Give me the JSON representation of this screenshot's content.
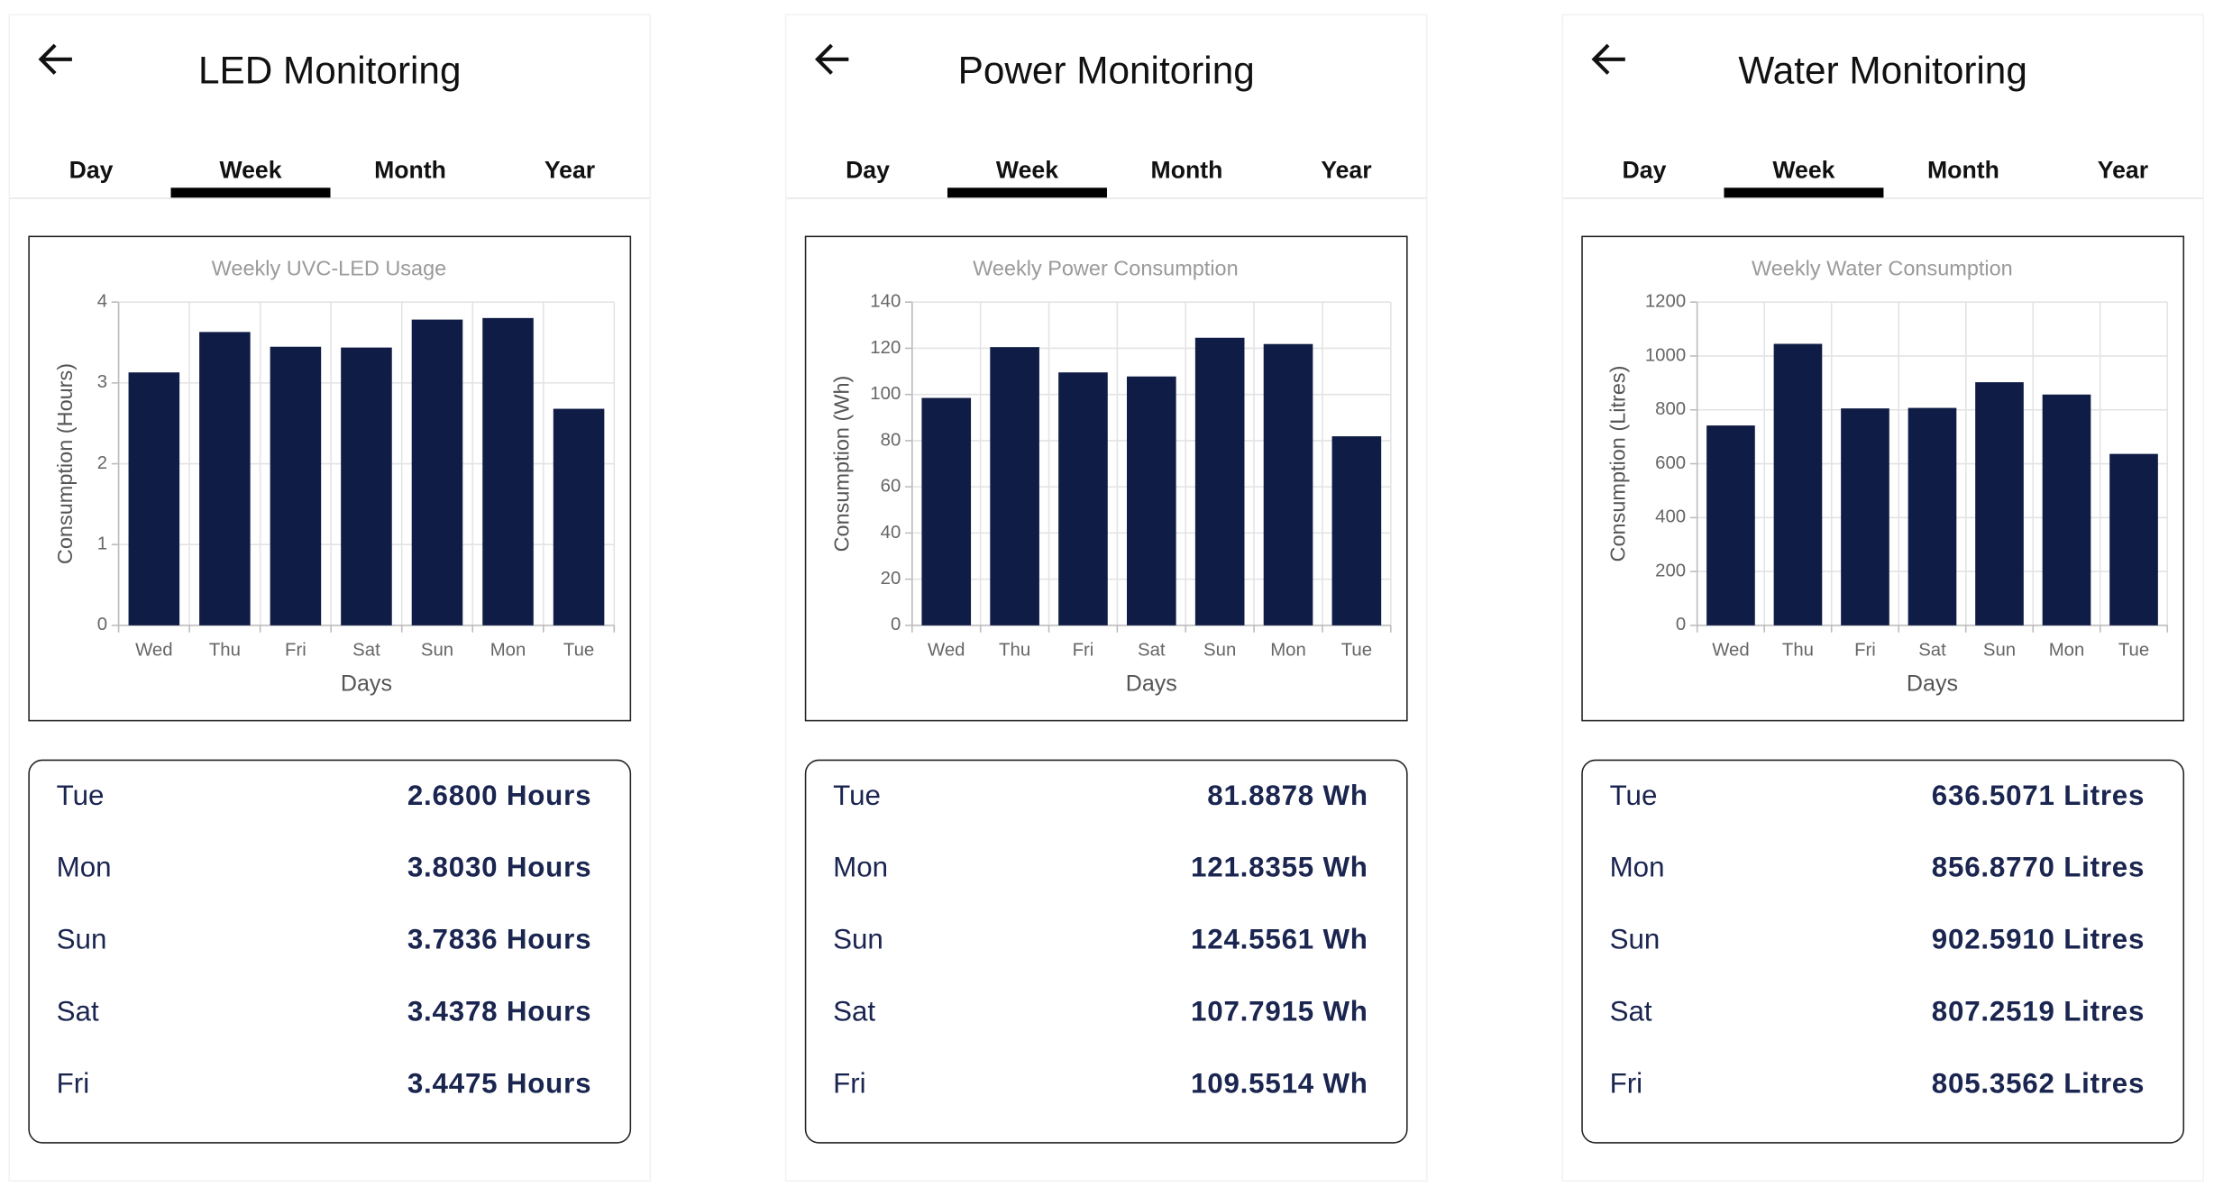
{
  "screens": [
    {
      "title": "LED Monitoring",
      "tabs": [
        "Day",
        "Week",
        "Month",
        "Year"
      ],
      "rows": [
        {
          "day": "Tue",
          "value": "2.6800 Hours"
        },
        {
          "day": "Mon",
          "value": "3.8030 Hours"
        },
        {
          "day": "Sun",
          "value": "3.7836 Hours"
        },
        {
          "day": "Sat",
          "value": "3.4378 Hours"
        },
        {
          "day": "Fri",
          "value": "3.4475 Hours"
        }
      ]
    },
    {
      "title": "Power Monitoring",
      "tabs": [
        "Day",
        "Week",
        "Month",
        "Year"
      ],
      "rows": [
        {
          "day": "Tue",
          "value": "81.8878 Wh"
        },
        {
          "day": "Mon",
          "value": "121.8355 Wh"
        },
        {
          "day": "Sun",
          "value": "124.5561 Wh"
        },
        {
          "day": "Sat",
          "value": "107.7915 Wh"
        },
        {
          "day": "Fri",
          "value": "109.5514 Wh"
        }
      ]
    },
    {
      "title": "Water Monitoring",
      "tabs": [
        "Day",
        "Week",
        "Month",
        "Year"
      ],
      "rows": [
        {
          "day": "Tue",
          "value": "636.5071 Litres"
        },
        {
          "day": "Mon",
          "value": "856.8770 Litres"
        },
        {
          "day": "Sun",
          "value": "902.5910 Litres"
        },
        {
          "day": "Sat",
          "value": "807.2519 Litres"
        },
        {
          "day": "Fri",
          "value": "805.3562 Litres"
        }
      ]
    }
  ],
  "chart_data": [
    {
      "type": "bar",
      "title": "Weekly UVC-LED Usage",
      "x_label": "Days",
      "y_label": "Consumption (Hours)",
      "categories": [
        "Wed",
        "Thu",
        "Fri",
        "Sat",
        "Sun",
        "Mon",
        "Tue"
      ],
      "values": [
        3.13,
        3.63,
        3.4475,
        3.4378,
        3.7836,
        3.803,
        2.68
      ],
      "color": "#0f1c45",
      "ylim": [
        0,
        4
      ],
      "yticks": [
        0,
        1,
        2,
        3,
        4
      ],
      "grid": true
    },
    {
      "type": "bar",
      "title": "Weekly Power Consumption",
      "x_label": "Days",
      "y_label": "Consumption (Wh)",
      "categories": [
        "Wed",
        "Thu",
        "Fri",
        "Sat",
        "Sun",
        "Mon",
        "Tue"
      ],
      "values": [
        98.5,
        120.5,
        109.5514,
        107.7915,
        124.5561,
        121.8355,
        81.8878
      ],
      "color": "#0f1c45",
      "ylim": [
        0,
        140
      ],
      "yticks": [
        0,
        20,
        40,
        60,
        80,
        100,
        120,
        140
      ],
      "grid": true
    },
    {
      "type": "bar",
      "title": "Weekly Water Consumption",
      "x_label": "Days",
      "y_label": "Consumption (Litres)",
      "categories": [
        "Wed",
        "Thu",
        "Fri",
        "Sat",
        "Sun",
        "Mon",
        "Tue"
      ],
      "values": [
        742,
        1045,
        805.3562,
        807.2519,
        902.591,
        856.877,
        636.5071
      ],
      "color": "#0f1c45",
      "ylim": [
        0,
        1200
      ],
      "yticks": [
        0,
        200,
        400,
        600,
        800,
        1000,
        1200
      ],
      "grid": true
    }
  ]
}
